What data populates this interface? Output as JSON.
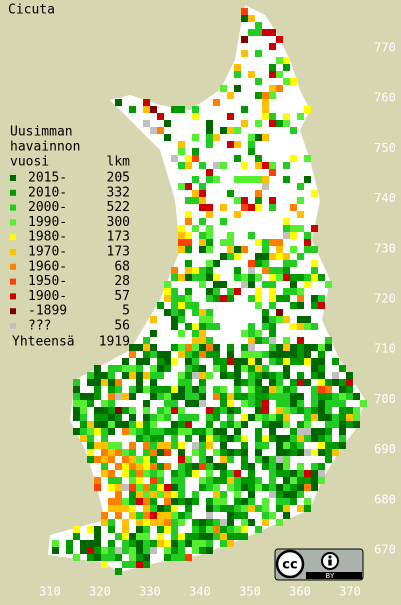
{
  "title": "Cicuta",
  "legend": {
    "heading": [
      "Uusimman",
      "havainnon",
      "vuosi"
    ],
    "count_heading": "lkm",
    "rows": [
      {
        "label": "2015-",
        "count": 205,
        "color": "#006600"
      },
      {
        "label": "2010-",
        "count": 332,
        "color": "#009900"
      },
      {
        "label": "2000-",
        "count": 522,
        "color": "#22cc22"
      },
      {
        "label": "1990-",
        "count": 300,
        "color": "#55ee33"
      },
      {
        "label": "1980-",
        "count": 173,
        "color": "#ffff00"
      },
      {
        "label": "1970-",
        "count": 173,
        "color": "#ffc000"
      },
      {
        "label": "1960-",
        "count": 68,
        "color": "#ff8000"
      },
      {
        "label": "1950-",
        "count": 28,
        "color": "#ff4000"
      },
      {
        "label": "1900-",
        "count": 57,
        "color": "#cc0000"
      },
      {
        "label": "-1899",
        "count": 5,
        "color": "#800000"
      },
      {
        "label": "???",
        "count": 56,
        "color": "#c0c0c0"
      }
    ],
    "total_label": "Yhteensä",
    "total": 1919
  },
  "x_ticks": [
    310,
    320,
    330,
    340,
    350,
    360,
    370
  ],
  "y_ticks": [
    670,
    680,
    690,
    700,
    710,
    720,
    730,
    740,
    750,
    760,
    770
  ],
  "license": {
    "icon": "cc",
    "label": "BY"
  }
}
